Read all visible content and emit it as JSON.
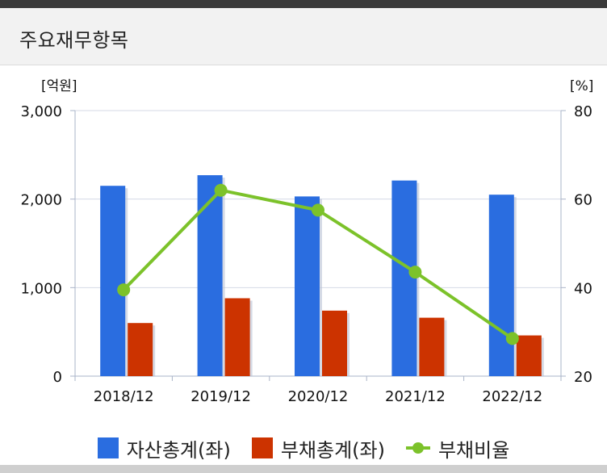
{
  "panel": {
    "title": "주요재무항목"
  },
  "chart_data": {
    "type": "bar",
    "categories": [
      "2018/12",
      "2019/12",
      "2020/12",
      "2021/12",
      "2022/12"
    ],
    "y_left": {
      "unit_label": "[억원]",
      "ylim": [
        0,
        3000
      ],
      "ticks": [
        0,
        1000,
        2000,
        3000
      ],
      "tick_labels": [
        "0",
        "1,000",
        "2,000",
        "3,000"
      ]
    },
    "y_right": {
      "unit_label": "[%]",
      "ylim": [
        20,
        80
      ],
      "ticks": [
        20,
        40,
        60,
        80
      ],
      "tick_labels": [
        "20",
        "40",
        "60",
        "80"
      ]
    },
    "grid": true,
    "legend_position": "bottom",
    "series": [
      {
        "name": "자산총계(좌)",
        "type": "bar",
        "axis": "left",
        "color": "#2a6de0",
        "values": [
          2150,
          2270,
          2030,
          2210,
          2050
        ]
      },
      {
        "name": "부채총계(좌)",
        "type": "bar",
        "axis": "left",
        "color": "#cc3300",
        "values": [
          600,
          880,
          740,
          660,
          460
        ]
      },
      {
        "name": "부채비율",
        "type": "line",
        "axis": "right",
        "color": "#7cc22a",
        "values": [
          39.5,
          62,
          57.5,
          43.5,
          28.5
        ]
      }
    ]
  }
}
